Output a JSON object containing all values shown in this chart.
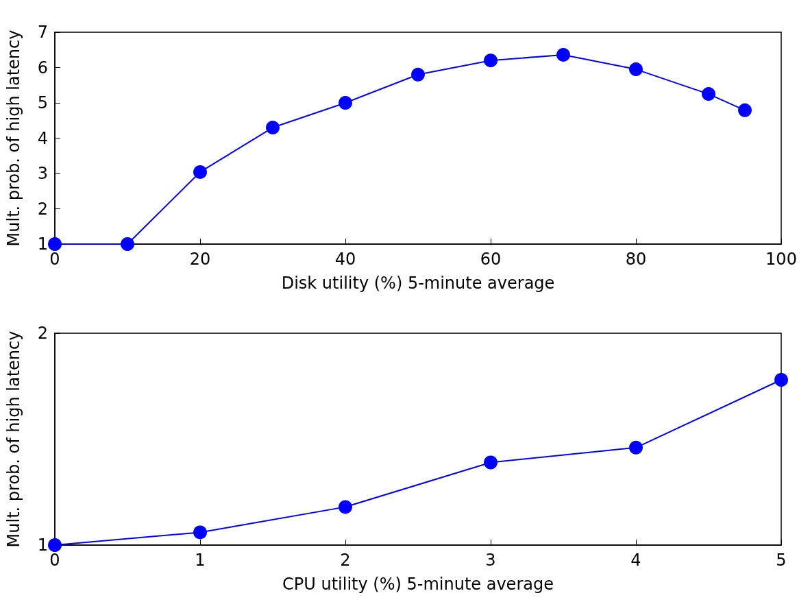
{
  "chart_data": [
    {
      "type": "line",
      "xlabel": "Disk utility (%) 5-minute average",
      "ylabel": "Mult. prob. of high latency",
      "x": [
        0,
        10,
        20,
        30,
        40,
        50,
        60,
        70,
        80,
        90,
        95
      ],
      "series": [
        {
          "color": "#0000ff",
          "values": [
            1.0,
            1.0,
            3.04,
            4.3,
            5.0,
            5.8,
            6.2,
            6.36,
            5.95,
            5.25,
            4.79
          ]
        }
      ],
      "xlim": [
        0,
        100
      ],
      "xticks": [
        0,
        20,
        40,
        60,
        80,
        100
      ],
      "ylim": [
        1,
        7
      ],
      "yticks": [
        1,
        2,
        3,
        4,
        5,
        6,
        7
      ],
      "marker": "circle",
      "line_style": "solid"
    },
    {
      "type": "line",
      "xlabel": "CPU utility (%) 5-minute average",
      "ylabel": "Mult. prob. of high latency",
      "x": [
        0,
        1,
        2,
        3,
        4,
        5
      ],
      "series": [
        {
          "color": "#0000ff",
          "values": [
            1.0,
            1.06,
            1.18,
            1.39,
            1.46,
            1.78
          ]
        }
      ],
      "xlim": [
        0,
        5
      ],
      "xticks": [
        0,
        1,
        2,
        3,
        4,
        5
      ],
      "ylim": [
        1,
        2
      ],
      "yticks": [
        1,
        2
      ],
      "marker": "circle",
      "line_style": "solid"
    }
  ]
}
